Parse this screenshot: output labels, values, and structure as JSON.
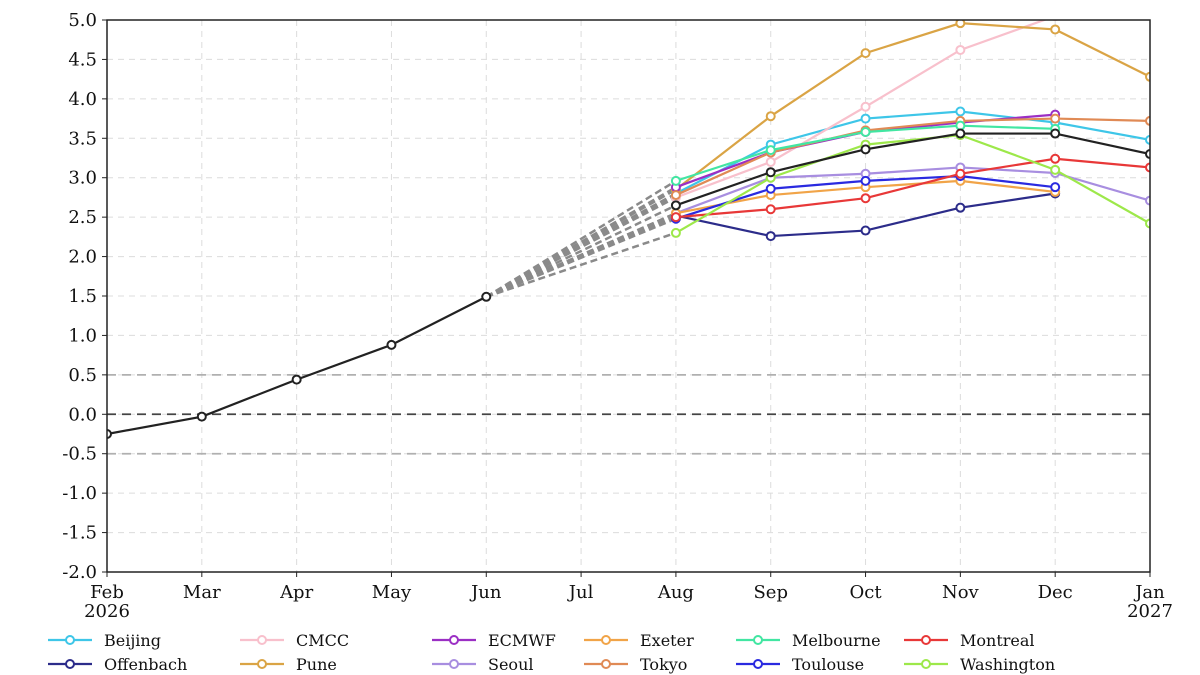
{
  "chart_data": {
    "type": "line",
    "x_ticks": [
      "Feb\n2026",
      "Mar",
      "Apr",
      "May",
      "Jun",
      "Jul",
      "Aug",
      "Sep",
      "Oct",
      "Nov",
      "Dec",
      "Jan\n2027"
    ],
    "ylim": [
      -2.0,
      5.0
    ],
    "y_ticks": [
      "5.0",
      "4.5",
      "4.0",
      "3.5",
      "3.0",
      "2.5",
      "2.0",
      "1.5",
      "1.0",
      "0.5",
      "0.0",
      "-0.5",
      "-1.0",
      "-1.5",
      "-2.0"
    ],
    "grid": true,
    "reference_lines": [
      {
        "y": 0.5,
        "style": "dashed",
        "color": "#b0b0b0"
      },
      {
        "y": 0.0,
        "style": "dashed",
        "color": "#444444"
      },
      {
        "y": -0.5,
        "style": "dashed",
        "color": "#b0b0b0"
      }
    ],
    "observed": {
      "color": "#222222",
      "points": [
        {
          "x": "Feb 2026",
          "y": -0.25
        },
        {
          "x": "Mar",
          "y": -0.03
        },
        {
          "x": "Apr",
          "y": 0.44
        },
        {
          "x": "May",
          "y": 0.88
        },
        {
          "x": "Jun",
          "y": 1.49
        }
      ]
    },
    "forecast_x": [
      "Aug",
      "Sep",
      "Oct",
      "Nov",
      "Dec",
      "Jan 2027"
    ],
    "legend_placement": "bottom",
    "series": [
      {
        "name": "Beijing",
        "color": "#3ec6e8",
        "values": [
          2.8,
          3.42,
          3.75,
          3.84,
          3.7,
          3.48
        ]
      },
      {
        "name": "Offenbach",
        "color": "#2c2c8a",
        "values": [
          2.52,
          2.26,
          2.33,
          2.62,
          2.8,
          null
        ]
      },
      {
        "name": "CMCC",
        "color": "#f8c0cc",
        "values": [
          2.75,
          3.2,
          3.9,
          4.62,
          5.05,
          null
        ]
      },
      {
        "name": "Pune",
        "color": "#daa445",
        "values": [
          2.85,
          3.78,
          4.58,
          4.96,
          4.88,
          4.28
        ]
      },
      {
        "name": "ECMWF",
        "color": "#9b2fc4",
        "values": [
          2.88,
          3.32,
          3.58,
          3.7,
          3.8,
          null
        ]
      },
      {
        "name": "Seoul",
        "color": "#a88ee0",
        "values": [
          2.55,
          3.0,
          3.05,
          3.13,
          3.06,
          2.71
        ]
      },
      {
        "name": "Exeter",
        "color": "#f1a448",
        "values": [
          2.55,
          2.78,
          2.88,
          2.96,
          2.82,
          null
        ]
      },
      {
        "name": "Tokyo",
        "color": "#e08a55",
        "values": [
          2.78,
          3.32,
          3.6,
          3.72,
          3.75,
          3.72
        ]
      },
      {
        "name": "Melbourne",
        "color": "#42e6a2",
        "values": [
          2.96,
          3.35,
          3.58,
          3.66,
          3.62,
          null
        ]
      },
      {
        "name": "Toulouse",
        "color": "#2a2ae0",
        "values": [
          2.48,
          2.86,
          2.96,
          3.02,
          2.88,
          null
        ]
      },
      {
        "name": "Montreal",
        "color": "#e83838",
        "values": [
          2.5,
          2.6,
          2.74,
          3.05,
          3.24,
          3.13
        ]
      },
      {
        "name": "Washington",
        "color": "#9de84a",
        "values": [
          2.3,
          3.0,
          3.42,
          3.54,
          3.1,
          2.42
        ]
      },
      {
        "name": "",
        "color": "#222222",
        "values": [
          2.65,
          3.07,
          3.36,
          3.56,
          3.56,
          3.3
        ]
      }
    ]
  }
}
